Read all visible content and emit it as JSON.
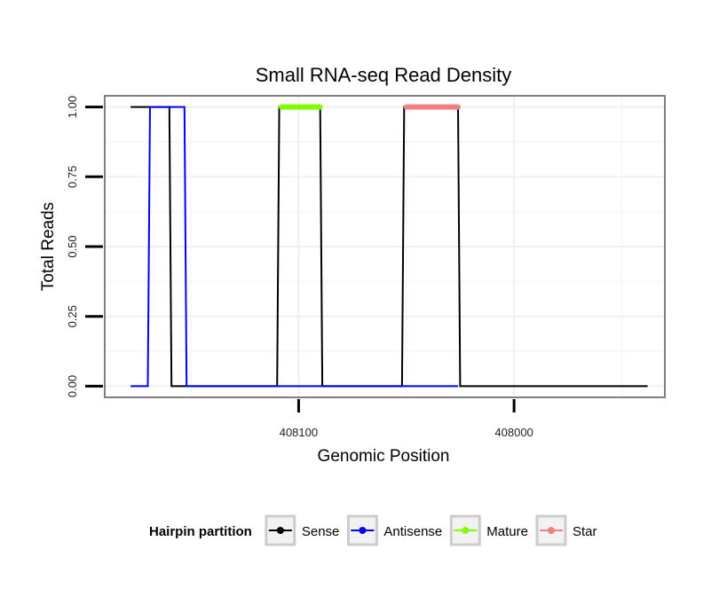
{
  "chart_data": {
    "type": "line",
    "title": "Small RNA-seq Read Density",
    "xlabel": "Genomic Position",
    "ylabel": "Total Reads",
    "x_reversed": true,
    "xlim": [
      408190,
      407930
    ],
    "ylim": [
      -0.04,
      1.04
    ],
    "x_ticks": [
      408100,
      408000
    ],
    "x_tick_labels": [
      "408100",
      "408000"
    ],
    "y_ticks": [
      0,
      0.25,
      0.5,
      0.75,
      1
    ],
    "y_tick_labels": [
      "0.00",
      "0.25",
      "0.50",
      "0.75",
      "1.00"
    ],
    "grid": true,
    "legend": {
      "title": "Hairpin partition",
      "position": "bottom",
      "entries": [
        {
          "name": "Sense",
          "color": "#000000"
        },
        {
          "name": "Antisense",
          "color": "#0000ff"
        },
        {
          "name": "Mature",
          "color": "#7fff00"
        },
        {
          "name": "Star",
          "color": "#f08080"
        }
      ]
    },
    "series": [
      {
        "name": "Sense",
        "color": "#000000",
        "x": [
          408178,
          408160,
          408159,
          408110,
          408109,
          408090,
          408089,
          408052,
          408051,
          408026,
          408025,
          407938
        ],
        "y": [
          1,
          1,
          0,
          0,
          1,
          1,
          0,
          0,
          1,
          1,
          0,
          0
        ]
      },
      {
        "name": "Antisense",
        "color": "#0000ff",
        "x": [
          408178,
          408170,
          408169,
          408153,
          408152,
          408110,
          408090,
          408052,
          408026
        ],
        "y": [
          0,
          0,
          1,
          1,
          0,
          0,
          0,
          0,
          0
        ]
      },
      {
        "name": "Mature",
        "color": "#7fff00",
        "x": [
          408108,
          408090
        ],
        "y": [
          1,
          1
        ]
      },
      {
        "name": "Star",
        "color": "#f08080",
        "x": [
          408050,
          408026
        ],
        "y": [
          1,
          1
        ]
      }
    ]
  }
}
